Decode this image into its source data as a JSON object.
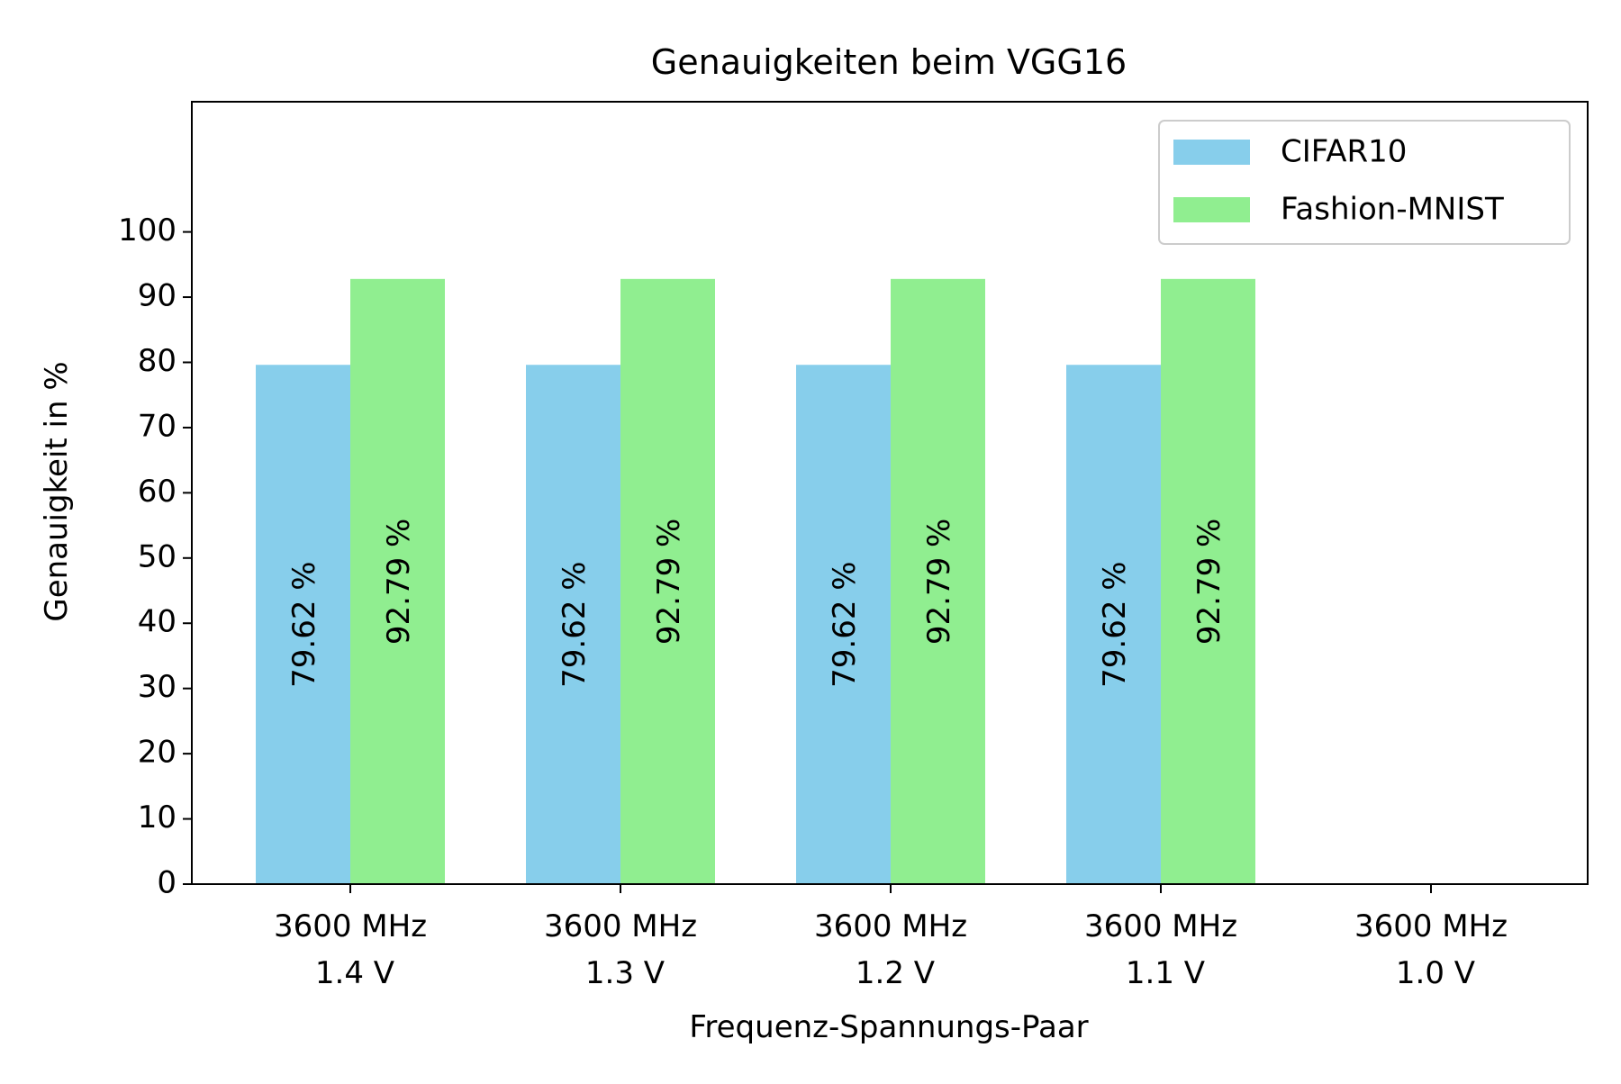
{
  "chart_data": {
    "type": "bar",
    "title": "Genauigkeiten beim VGG16",
    "xlabel": "Frequenz-Spannungs-Paar",
    "ylabel": "Genauigkeit in %",
    "categories": [
      [
        "3600 MHz",
        "1.4 V"
      ],
      [
        "3600 MHz",
        "1.3 V"
      ],
      [
        "3600 MHz",
        "1.2 V"
      ],
      [
        "3600 MHz",
        "1.1 V"
      ],
      [
        "3600 MHz",
        "1.0 V"
      ]
    ],
    "series": [
      {
        "name": "CIFAR10",
        "color": "#87CEEB",
        "values": [
          79.62,
          79.62,
          79.62,
          79.62,
          null
        ],
        "value_labels": [
          "79.62 %",
          "79.62 %",
          "79.62 %",
          "79.62 %",
          ""
        ]
      },
      {
        "name": "Fashion-MNIST",
        "color": "#90EE90",
        "values": [
          92.79,
          92.79,
          92.79,
          92.79,
          null
        ],
        "value_labels": [
          "92.79 %",
          "92.79 %",
          "92.79 %",
          "92.79 %",
          ""
        ]
      }
    ],
    "ylim": [
      0,
      100
    ],
    "yticks": [
      0,
      10,
      20,
      30,
      40,
      50,
      60,
      70,
      80,
      90,
      100
    ],
    "grid": false,
    "legend_position": "top-right"
  }
}
